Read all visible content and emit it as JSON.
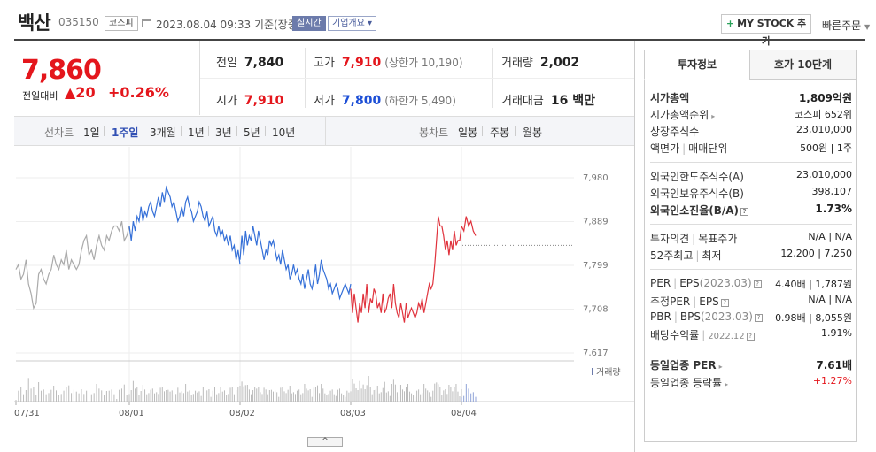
{
  "header": {
    "name": "백산",
    "code": "035150",
    "market": "코스피",
    "datetime": "2023.08.04 09:33 기준(장중)",
    "realtime": "실시간",
    "company_info": "기업개요",
    "mystock_label": "MY STOCK 추가",
    "quick_order": "빠른주문"
  },
  "price": {
    "current": "7,860",
    "change_label": "전일대비",
    "change": "▲20",
    "change_pct": "+0.26%"
  },
  "quote": {
    "prev_label": "전일",
    "prev": "7,840",
    "high_label": "고가",
    "high": "7,910",
    "upper_limit": "(상한가 10,190)",
    "volume_label": "거래량",
    "volume": "2,002",
    "open_label": "시가",
    "open": "7,910",
    "low_label": "저가",
    "low": "7,800",
    "lower_limit": "(하한가 5,490)",
    "amount_label": "거래대금",
    "amount": "16 백만"
  },
  "toolbar": {
    "line_label": "선차트",
    "periods": [
      "1일",
      "1주일",
      "3개월",
      "1년",
      "3년",
      "5년",
      "10년"
    ],
    "selected_period": "1주일",
    "candle_label": "봉차트",
    "candles": [
      "일봉",
      "주봉",
      "월봉"
    ],
    "collapse": "^"
  },
  "chart_data": {
    "type": "line",
    "y_ticks": [
      "7,980",
      "7,889",
      "7,799",
      "7,708",
      "7,617"
    ],
    "ylim": [
      7617,
      7980
    ],
    "x_ticks": [
      "07/31",
      "08/01",
      "08/02",
      "08/03",
      "08/04"
    ],
    "volume_legend": "거래량",
    "reference_price": 7840,
    "colors": {
      "jul31": "#aaaaaa",
      "aug01_02": "#3570d8",
      "aug03_04": "#e0323c",
      "prev_close": "#888888",
      "volume": "#bbbbbb"
    },
    "series": [
      {
        "date": "07/31",
        "values": [
          7790,
          7800,
          7770,
          7780,
          7810,
          7760,
          7740,
          7710,
          7720,
          7780,
          7790,
          7770,
          7760,
          7780,
          7790,
          7820,
          7800,
          7790,
          7810,
          7800,
          7830,
          7790,
          7810,
          7800,
          7790,
          7800,
          7830,
          7850,
          7860,
          7820,
          7830,
          7810,
          7840,
          7860,
          7840,
          7830,
          7860,
          7850,
          7870,
          7880,
          7880,
          7870,
          7890,
          7850,
          7860,
          7880
        ]
      },
      {
        "date": "08/01",
        "values": [
          7880,
          7850,
          7890,
          7870,
          7900,
          7890,
          7920,
          7890,
          7910,
          7900,
          7920,
          7930,
          7910,
          7900,
          7920,
          7940,
          7920,
          7950,
          7930,
          7960,
          7950,
          7940,
          7920,
          7930,
          7910,
          7890,
          7900,
          7920,
          7900,
          7930,
          7940,
          7920,
          7910,
          7890,
          7900,
          7910,
          7930,
          7920,
          7900,
          7890,
          7910,
          7880,
          7890,
          7900,
          7870,
          7860,
          7880,
          7860,
          7870,
          7850,
          7860,
          7840,
          7860,
          7830,
          7840,
          7810,
          7830,
          7800
        ]
      },
      {
        "date": "08/02",
        "values": [
          7810,
          7860,
          7820,
          7870,
          7840,
          7860,
          7850,
          7880,
          7860,
          7840,
          7870,
          7850,
          7830,
          7810,
          7830,
          7820,
          7850,
          7840,
          7850,
          7830,
          7810,
          7820,
          7800,
          7830,
          7810,
          7790,
          7800,
          7770,
          7780,
          7800,
          7780,
          7790,
          7770,
          7760,
          7780,
          7750,
          7770,
          7790,
          7760,
          7750,
          7770,
          7800,
          7760,
          7780,
          7810,
          7790,
          7780,
          7770,
          7750,
          7760,
          7740,
          7750,
          7760,
          7750,
          7730,
          7740,
          7750,
          7760,
          7750,
          7740,
          7760
        ]
      },
      {
        "date": "08/03",
        "values": [
          7750,
          7700,
          7740,
          7710,
          7680,
          7720,
          7700,
          7740,
          7710,
          7760,
          7700,
          7730,
          7720,
          7750,
          7740,
          7710,
          7720,
          7700,
          7740,
          7700,
          7710,
          7730,
          7740,
          7710,
          7760,
          7720,
          7700,
          7690,
          7720,
          7700,
          7680,
          7720,
          7690,
          7700,
          7710,
          7700,
          7690,
          7700,
          7720,
          7710,
          7730,
          7700,
          7720,
          7740,
          7760,
          7750,
          7760,
          7800,
          7850,
          7900,
          7880,
          7880,
          7860,
          7830,
          7850,
          7820,
          7850,
          7830,
          7870,
          7840,
          7850,
          7850,
          7880
        ]
      },
      {
        "date": "08/04",
        "values": [
          7880,
          7870,
          7900,
          7880,
          7890,
          7870,
          7860
        ]
      }
    ]
  },
  "panel": {
    "tab_invest": "투자정보",
    "tab_order": "호가 10단계",
    "market_cap_label": "시가총액",
    "market_cap": "1,809억원",
    "cap_rank_label": "시가총액순위",
    "cap_rank": "코스피 652위",
    "shares_label": "상장주식수",
    "shares": "23,010,000",
    "par_label": "액면가",
    "unit_label": "매매단위",
    "par_unit": "500원  |  1주",
    "foreign_limit_label": "외국인한도주식수(A)",
    "foreign_limit": "23,010,000",
    "foreign_hold_label": "외국인보유주식수(B)",
    "foreign_hold": "398,107",
    "foreign_ratio_label": "외국인소진율(B/A)",
    "foreign_ratio": "1.73%",
    "opinion_label": "투자의견",
    "target_label": "목표주가",
    "opinion_target": "N/A  |  N/A",
    "w52_label": "52주최고",
    "w52_low_label": "최저",
    "w52": "12,200  |  7,250",
    "per_label": "PER",
    "eps_label": "EPS",
    "per_period": "(2023.03)",
    "per_eps": "4.40배  |  1,787원",
    "est_per_label": "추정PER",
    "est_eps_label": "EPS",
    "est_per_eps": "N/A  |  N/A",
    "pbr_label": "PBR",
    "bps_label": "BPS",
    "pbr_period": "(2023.03)",
    "pbr_bps": "0.98배  |  8,055원",
    "div_label": "배당수익률",
    "div_period": "2022.12",
    "div": "1.91%",
    "ind_per_label": "동일업종 PER",
    "ind_per": "7.61배",
    "ind_rate_label": "동일업종 등락률",
    "ind_rate": "+1.27%"
  }
}
